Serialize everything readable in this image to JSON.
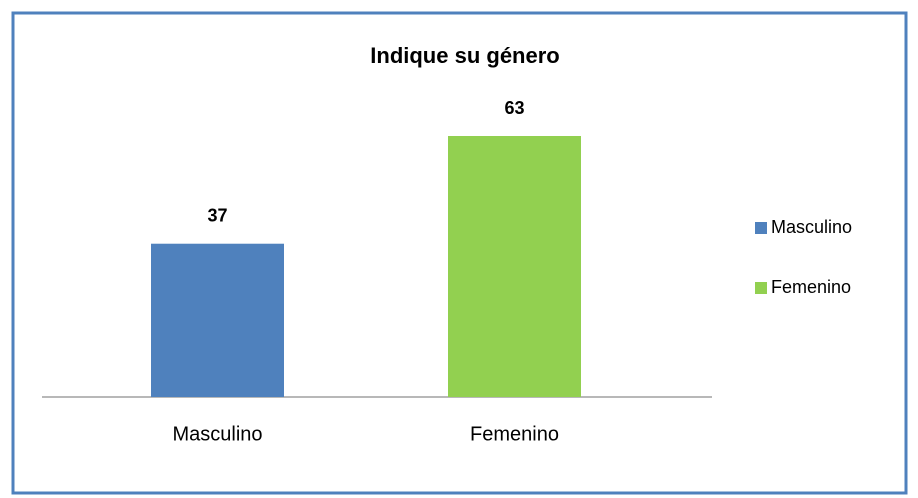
{
  "chart_data": {
    "type": "bar",
    "title": "Indique su género",
    "categories": [
      "Masculino",
      "Femenino"
    ],
    "values": [
      37,
      63
    ],
    "colors": [
      "#4f81bd",
      "#92d050"
    ],
    "legend": "right"
  }
}
